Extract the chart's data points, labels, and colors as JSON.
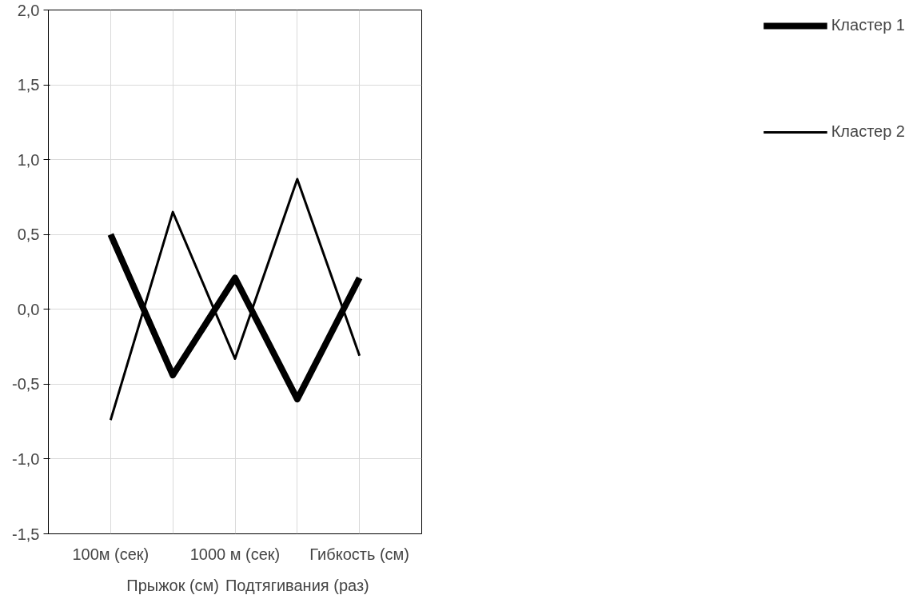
{
  "chart_data": {
    "type": "line",
    "categories": [
      "100м (сек)",
      "Прыжок (см)",
      "1000 м (сек)",
      "Подтягивания (раз)",
      "Гибкость (см)"
    ],
    "series": [
      {
        "name": "Кластер 1",
        "color": "#000000",
        "values": [
          0.5,
          -0.44,
          0.21,
          -0.6,
          0.21
        ]
      },
      {
        "name": "Кластер 2",
        "color": "#000000",
        "values": [
          -0.74,
          0.65,
          -0.33,
          0.87,
          -0.31
        ]
      }
    ],
    "ylim": [
      -1.5,
      2.0
    ],
    "yticks": [
      {
        "value": -1.5,
        "label": "-1,5"
      },
      {
        "value": -1.0,
        "label": "-1,0"
      },
      {
        "value": -0.5,
        "label": "-0,5"
      },
      {
        "value": 0.0,
        "label": "0,0"
      },
      {
        "value": 0.5,
        "label": "0,5"
      },
      {
        "value": 1.0,
        "label": "1,0"
      },
      {
        "value": 1.5,
        "label": "1,5"
      },
      {
        "value": 2.0,
        "label": "2,0"
      }
    ],
    "grid": true,
    "legend": "right",
    "marker": "none",
    "line_style": "solid"
  }
}
